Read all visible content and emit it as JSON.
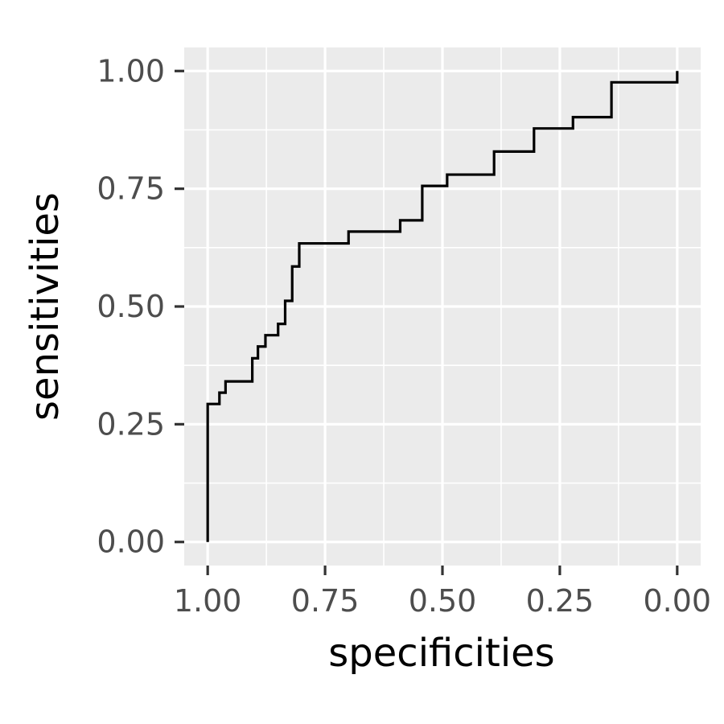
{
  "chart_data": {
    "type": "line",
    "title": "",
    "xlabel": "specificities",
    "ylabel": "sensitivities",
    "xlim": [
      1.05,
      -0.05
    ],
    "ylim": [
      -0.05,
      1.05
    ],
    "x_reversed": true,
    "x_ticks": [
      1.0,
      0.75,
      0.5,
      0.25,
      0.0
    ],
    "x_tick_labels": [
      "1.00",
      "0.75",
      "0.50",
      "0.25",
      "0.00"
    ],
    "y_ticks": [
      0.0,
      0.25,
      0.5,
      0.75,
      1.0
    ],
    "y_tick_labels": [
      "0.00",
      "0.25",
      "0.50",
      "0.75",
      "1.00"
    ],
    "grid": true,
    "background": "#EBEBEB",
    "line_color": "#000000",
    "series": [
      {
        "x": [
          1.0,
          1.0,
          0.975,
          0.975,
          0.962,
          0.962,
          0.905,
          0.905,
          0.893,
          0.893,
          0.877,
          0.877,
          0.85,
          0.85,
          0.835,
          0.835,
          0.82,
          0.82,
          0.805,
          0.805,
          0.7,
          0.7,
          0.59,
          0.59,
          0.543,
          0.543,
          0.49,
          0.49,
          0.39,
          0.39,
          0.305,
          0.305,
          0.222,
          0.222,
          0.14,
          0.14,
          0.0,
          0.0
        ],
        "y": [
          0.0,
          0.293,
          0.293,
          0.317,
          0.317,
          0.341,
          0.341,
          0.39,
          0.39,
          0.415,
          0.415,
          0.439,
          0.439,
          0.463,
          0.463,
          0.512,
          0.512,
          0.585,
          0.585,
          0.634,
          0.634,
          0.659,
          0.659,
          0.683,
          0.683,
          0.756,
          0.756,
          0.78,
          0.78,
          0.829,
          0.829,
          0.878,
          0.878,
          0.902,
          0.902,
          0.976,
          0.976,
          1.0
        ]
      }
    ]
  }
}
